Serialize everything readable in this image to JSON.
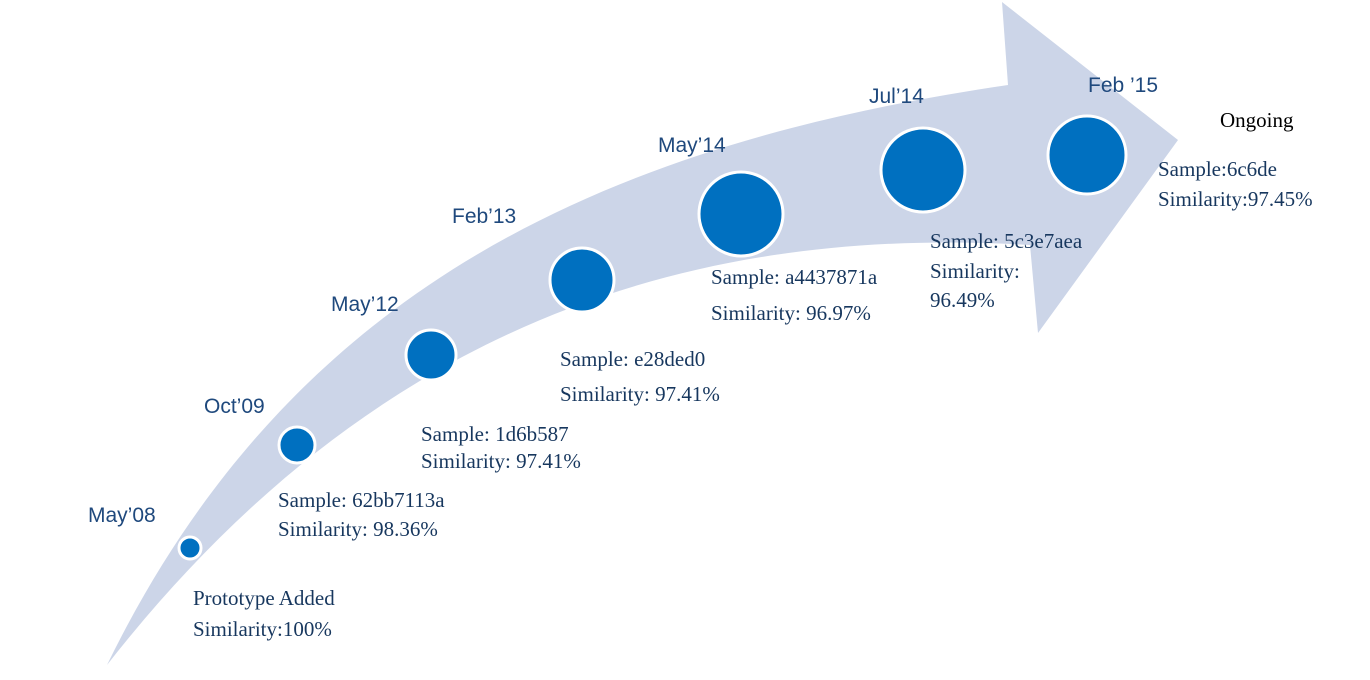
{
  "colors": {
    "arrow_fill": "#ccd5e8",
    "node_fill": "#0070c0",
    "node_stroke": "#ffffff",
    "date_text": "#1f497d",
    "caption_text": "#17375e"
  },
  "timeline": [
    {
      "date": "May’08",
      "line1": "Prototype Added",
      "line2": "Similarity:100%"
    },
    {
      "date": "Oct’09",
      "line1": "Sample:  62bb7113a",
      "line2": "Similarity:  98.36%"
    },
    {
      "date": "May’12",
      "line1": "Sample:  1d6b587",
      "line2": "Similarity:  97.41%"
    },
    {
      "date": "Feb’13",
      "line1": "Sample:  e28ded0",
      "line2": "Similarity:  97.41%"
    },
    {
      "date": "May’14",
      "line1": "Sample:  a4437871a",
      "line2": "Similarity:  96.97%"
    },
    {
      "date": "Jul’14",
      "line1": "Sample:  5c3e7aea",
      "line2": "Similarity:",
      "line3": "96.49%"
    },
    {
      "date": "Feb ’15",
      "line1": "Sample:6c6de",
      "line2": "Similarity:97.45%"
    }
  ],
  "status": "Ongoing"
}
